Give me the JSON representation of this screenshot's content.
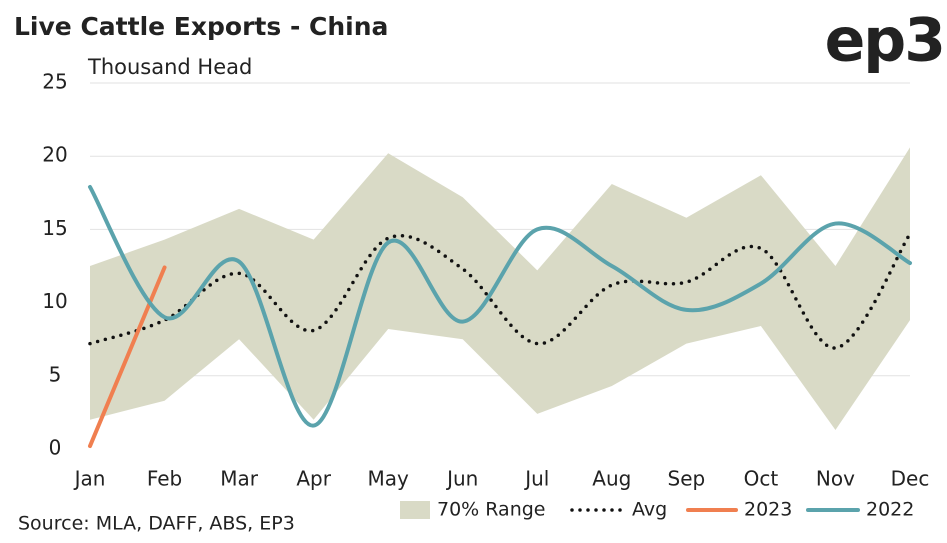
{
  "chart_data": {
    "type": "line",
    "title": "Live Cattle Exports - China",
    "subtitle": "Thousand Head",
    "logo": "ep3",
    "source": "Source: MLA, DAFF, ABS, EP3",
    "categories": [
      "Jan",
      "Feb",
      "Mar",
      "Apr",
      "May",
      "Jun",
      "Jul",
      "Aug",
      "Sep",
      "Oct",
      "Nov",
      "Dec"
    ],
    "range": {
      "name": "70% Range",
      "color": "#d9dac6",
      "low": [
        2.0,
        3.3,
        7.5,
        2.0,
        8.2,
        7.5,
        2.4,
        4.3,
        7.2,
        8.4,
        1.3,
        8.8
      ],
      "high": [
        12.5,
        14.3,
        16.4,
        14.3,
        20.2,
        17.2,
        12.2,
        18.1,
        15.8,
        18.7,
        12.5,
        20.6
      ]
    },
    "series": [
      {
        "name": "Avg",
        "color": "#111111",
        "style": "dotted",
        "smooth": true,
        "values": [
          7.2,
          8.8,
          12.0,
          8.1,
          14.4,
          12.3,
          7.2,
          11.2,
          11.4,
          13.7,
          6.9,
          14.7
        ]
      },
      {
        "name": "2023",
        "color": "#f07f50",
        "style": "solid",
        "smooth": false,
        "values": [
          0.2,
          12.4,
          null,
          null,
          null,
          null,
          null,
          null,
          null,
          null,
          null,
          null
        ]
      },
      {
        "name": "2022",
        "color": "#5ba3ac",
        "style": "solid",
        "smooth": true,
        "values": [
          17.9,
          9.0,
          12.8,
          1.6,
          14.1,
          8.7,
          15.0,
          12.5,
          9.5,
          11.3,
          15.4,
          12.7
        ]
      }
    ],
    "ylim": [
      0,
      25
    ],
    "yticks": [
      0,
      5,
      10,
      15,
      20,
      25
    ],
    "grid": true,
    "legend": "bottom"
  }
}
